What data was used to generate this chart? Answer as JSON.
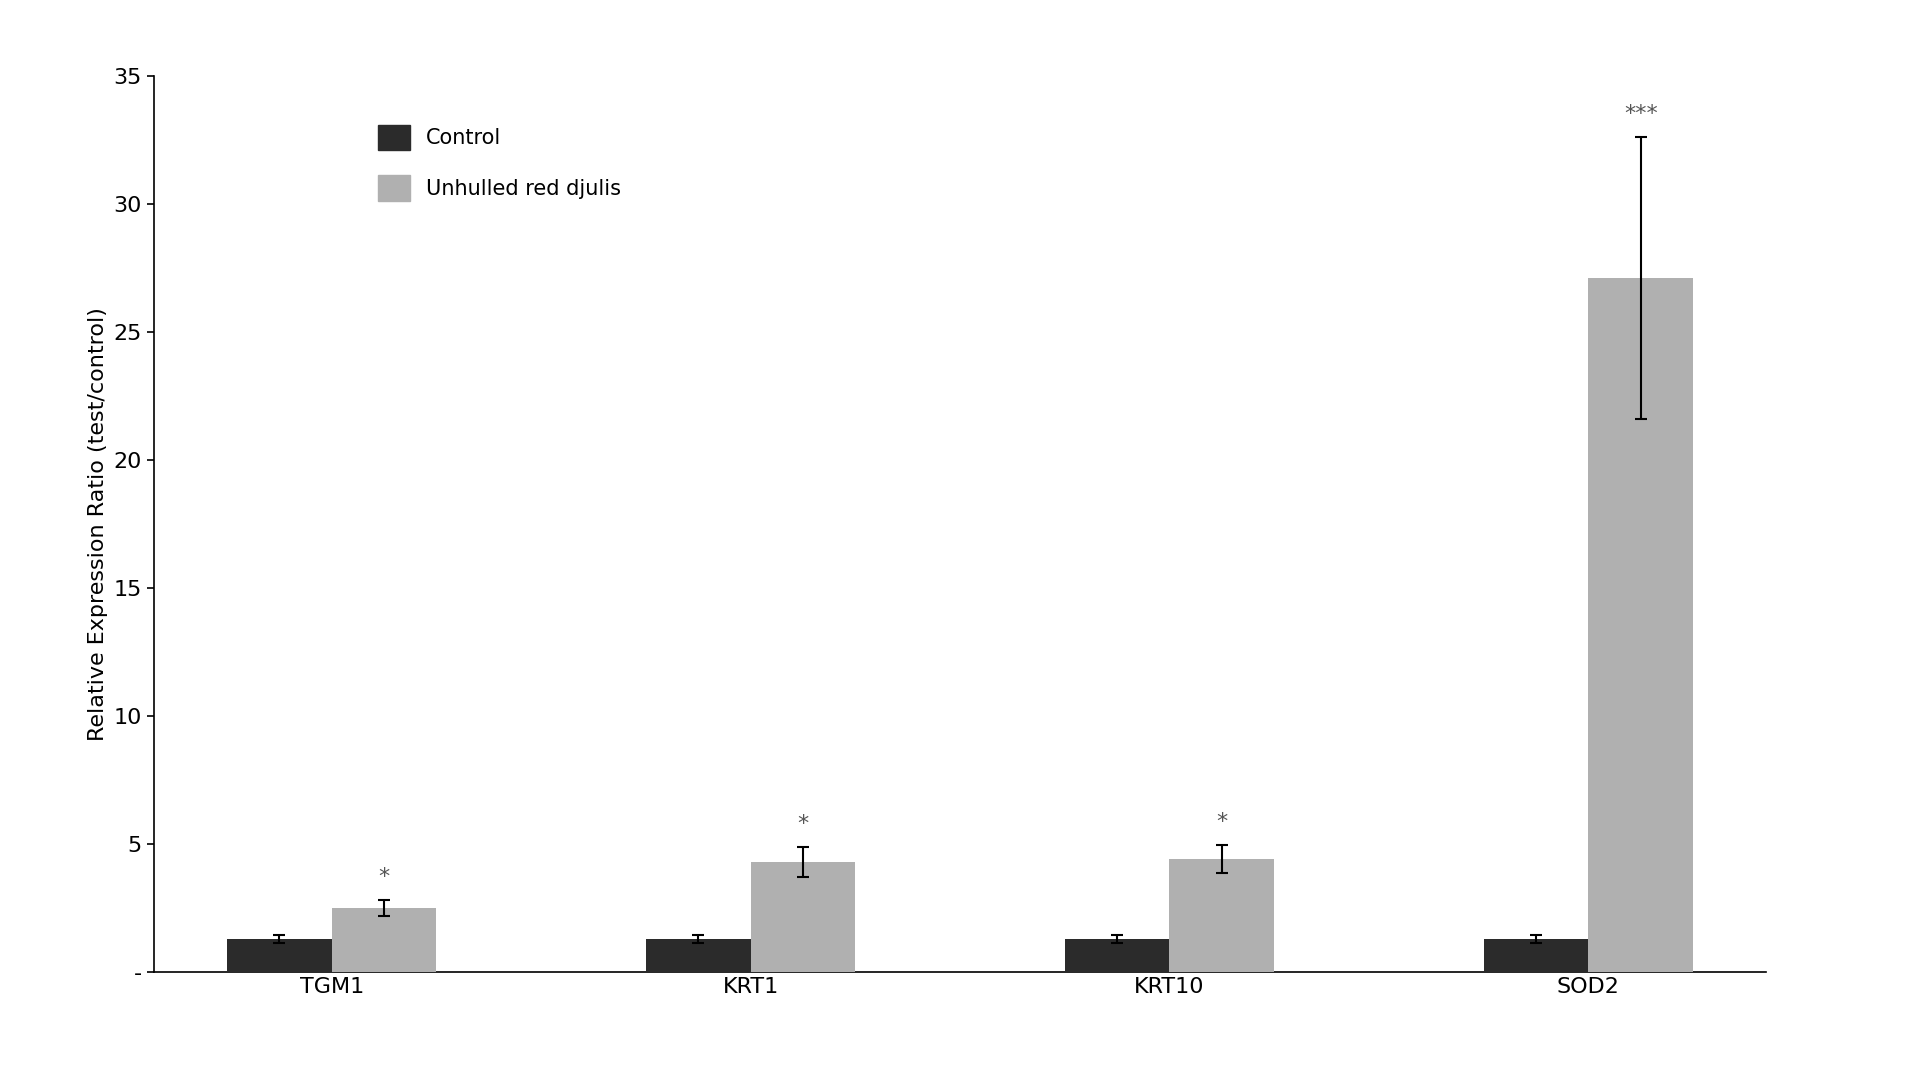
{
  "categories": [
    "TGM1",
    "KRT1",
    "KRT10",
    "SOD2"
  ],
  "control_values": [
    1.3,
    1.3,
    1.3,
    1.3
  ],
  "treatment_values": [
    2.5,
    4.3,
    4.4,
    27.1
  ],
  "control_errors": [
    0.15,
    0.15,
    0.15,
    0.15
  ],
  "treatment_errors": [
    0.3,
    0.6,
    0.55,
    5.5
  ],
  "control_color": "#2b2b2b",
  "treatment_color": "#b0b0b0",
  "control_label": "Control",
  "treatment_label": "Unhulled red djulis",
  "ylabel": "Relative Expression Ratio (test/control)",
  "ylim": [
    0,
    35
  ],
  "yticks": [
    0,
    5,
    10,
    15,
    20,
    25,
    30,
    35
  ],
  "significance": [
    "*",
    "*",
    "*",
    "***"
  ],
  "bar_width": 0.25,
  "background_color": "#ffffff",
  "tick_label_fontsize": 16,
  "ylabel_fontsize": 16,
  "legend_fontsize": 15,
  "significance_fontsize": 16
}
